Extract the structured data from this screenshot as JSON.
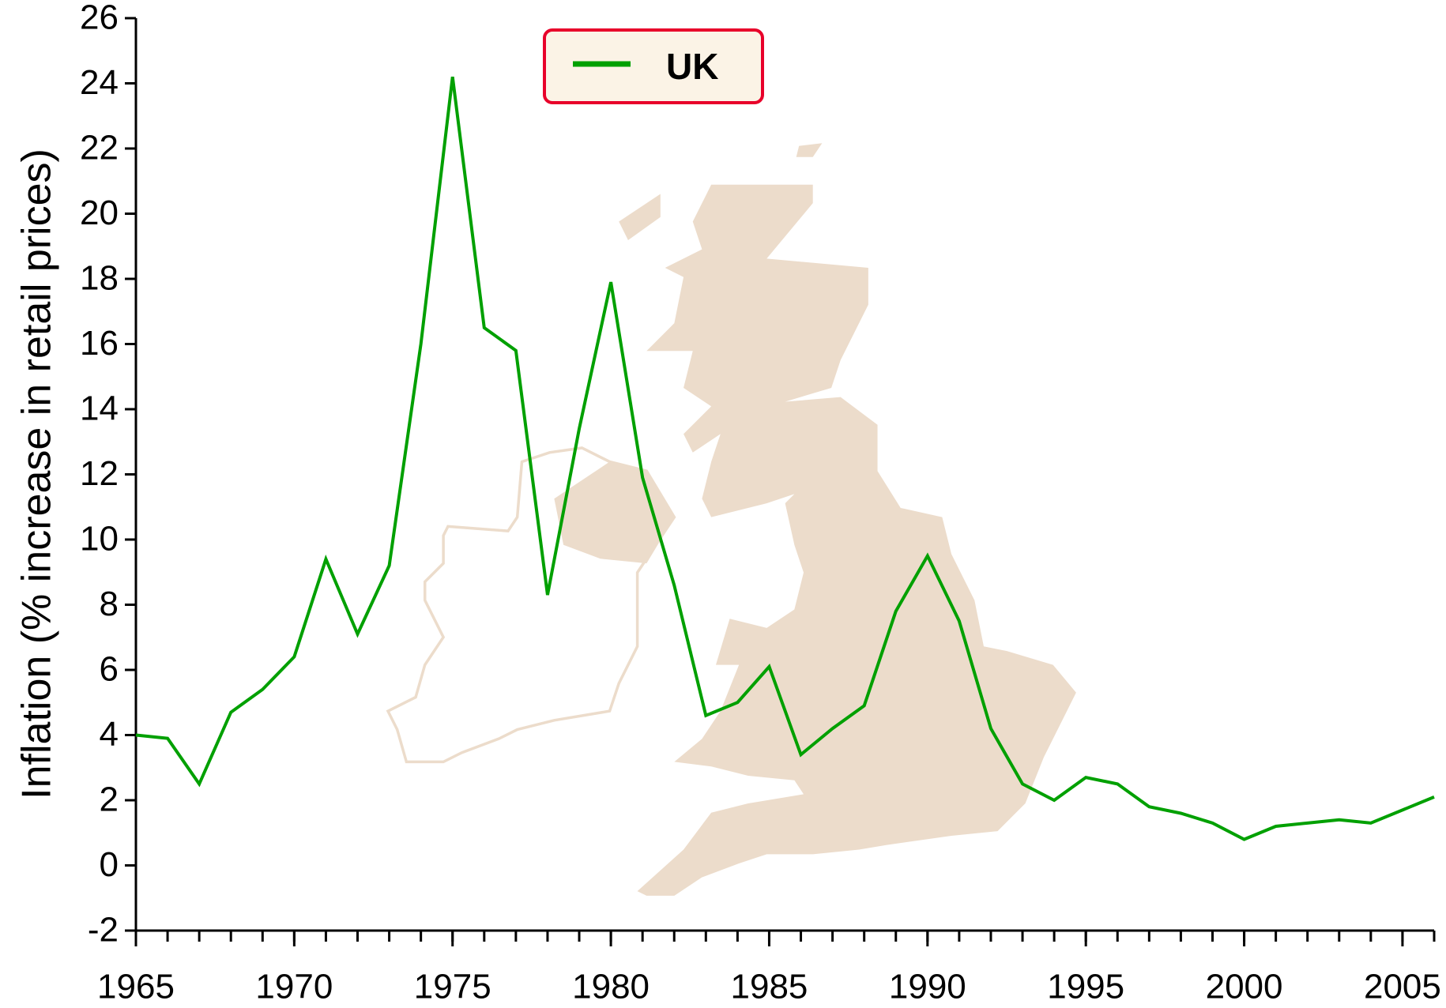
{
  "chart_data": {
    "type": "line",
    "y_label": "Inflation (% increase in retail prices)",
    "x": [
      1965,
      1966,
      1967,
      1968,
      1969,
      1970,
      1971,
      1972,
      1973,
      1974,
      1975,
      1976,
      1977,
      1978,
      1979,
      1980,
      1981,
      1982,
      1983,
      1984,
      1985,
      1986,
      1987,
      1988,
      1989,
      1990,
      1991,
      1992,
      1993,
      1994,
      1995,
      1996,
      1997,
      1998,
      1999,
      2000,
      2001,
      2002,
      2003,
      2004,
      2005,
      2006
    ],
    "series": [
      {
        "name": "UK",
        "color": "#00a000",
        "values": [
          4.0,
          3.9,
          2.5,
          4.7,
          5.4,
          6.4,
          9.4,
          7.1,
          9.2,
          16.0,
          24.2,
          16.5,
          15.8,
          8.3,
          13.4,
          17.9,
          11.9,
          8.6,
          4.6,
          5.0,
          6.1,
          3.4,
          4.2,
          4.9,
          7.8,
          9.5,
          7.5,
          4.2,
          2.5,
          2.0,
          2.7,
          2.5,
          1.8,
          1.6,
          1.3,
          0.8,
          1.2,
          1.3,
          1.4,
          1.3,
          1.7,
          2.1
        ]
      }
    ],
    "xlim": [
      1965,
      2006
    ],
    "xticks": [
      1965,
      1970,
      1975,
      1980,
      1985,
      1990,
      1995,
      2000,
      2005
    ],
    "ylim": [
      -2,
      26
    ],
    "yticks": [
      -2,
      0,
      2,
      4,
      6,
      8,
      10,
      12,
      14,
      16,
      18,
      20,
      22,
      24,
      26
    ],
    "legend": "top-center"
  }
}
